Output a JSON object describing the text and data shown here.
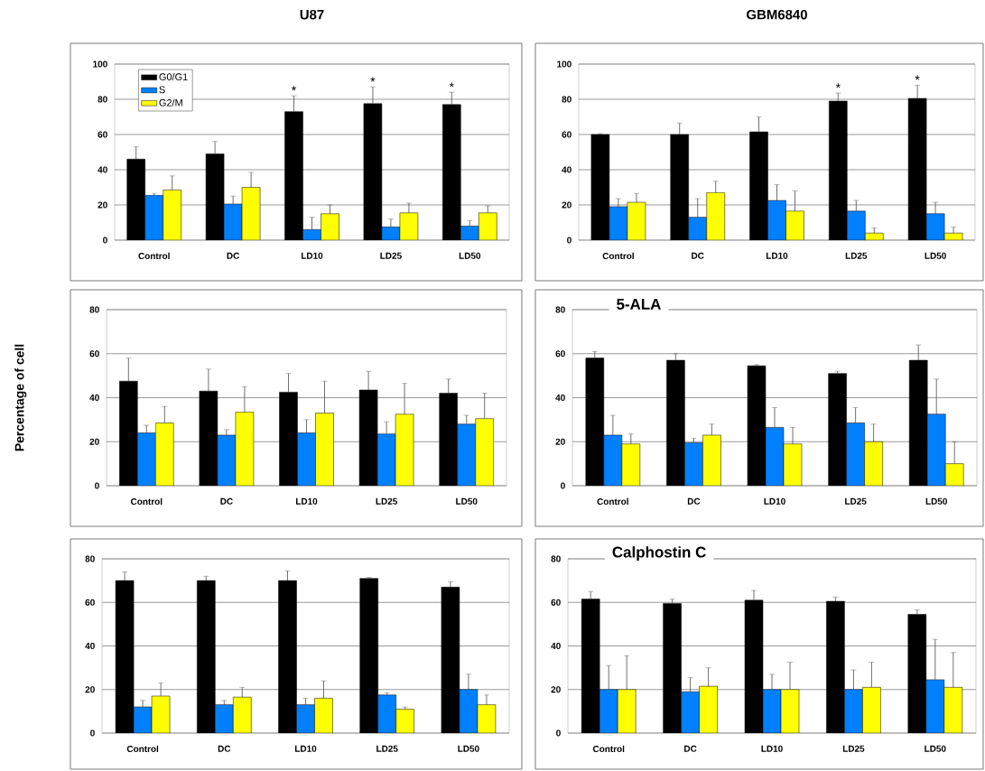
{
  "chart_data": [
    {
      "type": "bar",
      "title": "U87",
      "categories": [
        "Control",
        "DC",
        "LD10",
        "LD25",
        "LD50"
      ],
      "series": [
        {
          "name": "G0/G1",
          "color": "#000000",
          "values": [
            46,
            49,
            73,
            77.5,
            77
          ],
          "errors": [
            [
              46,
              53
            ],
            [
              49,
              56
            ],
            [
              73,
              82
            ],
            [
              77.5,
              87
            ],
            [
              77,
              84
            ]
          ],
          "value_labels": [
            null,
            null,
            "*",
            "*",
            "*"
          ]
        },
        {
          "name": "S",
          "color": "#0080ff",
          "values": [
            25.5,
            20.5,
            6,
            7.5,
            8
          ],
          "errors": [
            [
              25.5,
              26.5
            ],
            [
              20.5,
              25
            ],
            [
              6,
              13
            ],
            [
              7.5,
              12
            ],
            [
              8,
              11
            ]
          ]
        },
        {
          "name": "G2/M",
          "color": "#ffff00",
          "values": [
            28.5,
            30,
            15,
            15.5,
            15.5
          ],
          "errors": [
            [
              28.5,
              36.5
            ],
            [
              30,
              38.5
            ],
            [
              15,
              20
            ],
            [
              15.5,
              21
            ],
            [
              15.5,
              19.5
            ]
          ]
        }
      ],
      "ylim": [
        0,
        100
      ],
      "yticks": [
        0,
        20,
        40,
        60,
        80,
        100
      ],
      "grid": "y",
      "legend": "top left"
    },
    {
      "type": "bar",
      "title": "GBM6840",
      "categories": [
        "Control",
        "DC",
        "LD10",
        "LD25",
        "LD50"
      ],
      "series": [
        {
          "color": "#000000",
          "values": [
            60,
            60,
            61.5,
            79,
            80.5
          ],
          "errors": [
            [
              60,
              60.5
            ],
            [
              60,
              66.5
            ],
            [
              61.5,
              70
            ],
            [
              79,
              83.5
            ],
            [
              80.5,
              88
            ]
          ],
          "value_labels": [
            null,
            null,
            null,
            "*",
            "*"
          ]
        },
        {
          "color": "#0080ff",
          "values": [
            19,
            13,
            22.5,
            16.5,
            15
          ],
          "errors": [
            [
              19,
              23.5
            ],
            [
              13,
              23.5
            ],
            [
              22.5,
              31.5
            ],
            [
              16.5,
              22.5
            ],
            [
              15,
              21.5
            ]
          ]
        },
        {
          "color": "#ffff00",
          "values": [
            21.5,
            27,
            16.5,
            4,
            4
          ],
          "errors": [
            [
              21.5,
              26.5
            ],
            [
              27,
              33.5
            ],
            [
              16.5,
              28
            ],
            [
              4,
              7
            ],
            [
              4,
              7.5
            ]
          ]
        }
      ],
      "ylim": [
        0,
        100
      ],
      "yticks": [
        0,
        20,
        40,
        60,
        80,
        100
      ],
      "grid": "y"
    },
    {
      "type": "bar",
      "ylabel": "Percentage of cell",
      "categories": [
        "Control",
        "DC",
        "LD10",
        "LD25",
        "LD50"
      ],
      "series": [
        {
          "color": "#000000",
          "values": [
            47.5,
            43,
            42.5,
            43.5,
            42
          ],
          "errors": [
            [
              47.5,
              58
            ],
            [
              43,
              53
            ],
            [
              42.5,
              51
            ],
            [
              43.5,
              52
            ],
            [
              42,
              48.5
            ]
          ]
        },
        {
          "color": "#0080ff",
          "values": [
            24,
            23,
            24,
            23.5,
            28
          ],
          "errors": [
            [
              24,
              27.5
            ],
            [
              23,
              25.5
            ],
            [
              24,
              30
            ],
            [
              23.5,
              29
            ],
            [
              28,
              32
            ]
          ]
        },
        {
          "color": "#ffff00",
          "values": [
            28.5,
            33.5,
            33,
            32.5,
            30.5
          ],
          "errors": [
            [
              28.5,
              36
            ],
            [
              33.5,
              45
            ],
            [
              33,
              47.5
            ],
            [
              32.5,
              46.5
            ],
            [
              30.5,
              42
            ]
          ]
        }
      ],
      "ylim": [
        0,
        80
      ],
      "yticks": [
        0,
        20,
        40,
        60,
        80
      ],
      "grid": "y"
    },
    {
      "type": "bar",
      "title": "5-ALA",
      "categories": [
        "Control",
        "DC",
        "LD10",
        "LD25",
        "LD50"
      ],
      "series": [
        {
          "color": "#000000",
          "values": [
            58,
            57,
            54.5,
            51,
            57
          ],
          "errors": [
            [
              58,
              61
            ],
            [
              57,
              60
            ],
            [
              54.5,
              55
            ],
            [
              51,
              52
            ],
            [
              57,
              64
            ]
          ]
        },
        {
          "color": "#0080ff",
          "values": [
            23,
            19.5,
            26.5,
            28.5,
            32.5
          ],
          "errors": [
            [
              23,
              32
            ],
            [
              19.5,
              21.5
            ],
            [
              26.5,
              35.5
            ],
            [
              28.5,
              35.5
            ],
            [
              32.5,
              48.5
            ]
          ]
        },
        {
          "color": "#ffff00",
          "values": [
            19,
            23,
            19,
            20,
            10
          ],
          "errors": [
            [
              19,
              23.5
            ],
            [
              23,
              28
            ],
            [
              19,
              26.5
            ],
            [
              20,
              28
            ],
            [
              10,
              20
            ]
          ]
        }
      ],
      "ylim": [
        0,
        80
      ],
      "yticks": [
        0,
        20,
        40,
        60,
        80
      ],
      "grid": "y"
    },
    {
      "type": "bar",
      "categories": [
        "Control",
        "DC",
        "LD10",
        "LD25",
        "LD50"
      ],
      "series": [
        {
          "color": "#000000",
          "values": [
            70,
            70,
            70,
            71,
            67
          ],
          "errors": [
            [
              70,
              74
            ],
            [
              70,
              72
            ],
            [
              70,
              74.5
            ],
            [
              71,
              71.5
            ],
            [
              67,
              69.5
            ]
          ]
        },
        {
          "color": "#0080ff",
          "values": [
            12,
            13,
            13,
            17.5,
            20
          ],
          "errors": [
            [
              12,
              15
            ],
            [
              13,
              15
            ],
            [
              13,
              16
            ],
            [
              17.5,
              18.5
            ],
            [
              20,
              27
            ]
          ]
        },
        {
          "color": "#ffff00",
          "values": [
            17,
            16.5,
            16,
            11,
            13
          ],
          "errors": [
            [
              17,
              23
            ],
            [
              16.5,
              21
            ],
            [
              16,
              24
            ],
            [
              11,
              12
            ],
            [
              13,
              17.5
            ]
          ]
        }
      ],
      "ylim": [
        0,
        80
      ],
      "yticks": [
        0,
        20,
        40,
        60,
        80
      ],
      "grid": "y"
    },
    {
      "type": "bar",
      "title": "Calphostin C",
      "categories": [
        "Control",
        "DC",
        "LD10",
        "LD25",
        "LD50"
      ],
      "series": [
        {
          "color": "#000000",
          "values": [
            61.5,
            59.5,
            61,
            60.5,
            54.5
          ],
          "errors": [
            [
              61.5,
              65
            ],
            [
              59.5,
              61.5
            ],
            [
              61,
              65.5
            ],
            [
              60.5,
              62.5
            ],
            [
              54.5,
              56.5
            ]
          ]
        },
        {
          "color": "#0080ff",
          "values": [
            20,
            19,
            20,
            20,
            24.5
          ],
          "errors": [
            [
              20,
              31
            ],
            [
              19,
              25.5
            ],
            [
              20,
              27
            ],
            [
              20,
              29
            ],
            [
              24.5,
              43
            ]
          ]
        },
        {
          "color": "#ffff00",
          "values": [
            20,
            21.5,
            20,
            21,
            21
          ],
          "errors": [
            [
              20,
              35.5
            ],
            [
              21.5,
              30
            ],
            [
              20,
              32.5
            ],
            [
              21,
              32.5
            ],
            [
              21,
              37
            ]
          ]
        }
      ],
      "ylim": [
        0,
        80
      ],
      "yticks": [
        0,
        20,
        40,
        60,
        80
      ],
      "grid": "y"
    }
  ]
}
